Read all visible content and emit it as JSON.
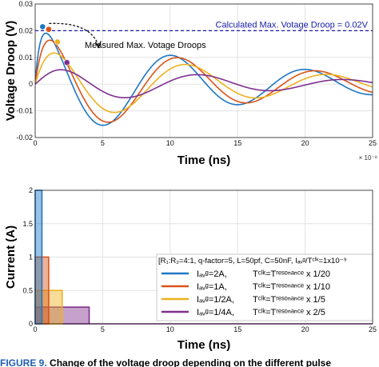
{
  "chart_data": [
    {
      "type": "line",
      "xlabel": "Time (ns)",
      "ylabel": "Voltage Droop (V)",
      "x_exponent_label": "× 10⁻⁸",
      "xlim": [
        0,
        25
      ],
      "ylim": [
        -0.02,
        0.03
      ],
      "xticks": [
        "0",
        "5",
        "10",
        "15",
        "20",
        "25"
      ],
      "yticks": [
        "-0.02",
        "-0.01",
        "0",
        "0.01",
        "0.02",
        "0.03"
      ],
      "grid": true,
      "series": [
        {
          "color": "#1f77c4",
          "peak": 0.0215,
          "period": 9.95,
          "delay": 0.0
        },
        {
          "color": "#d9541a",
          "peak": 0.0205,
          "period": 10.2,
          "delay": 0.45
        },
        {
          "color": "#edb120",
          "peak": 0.0158,
          "period": 10.45,
          "delay": 1.0
        },
        {
          "color": "#7e2f8e",
          "peak": 0.0081,
          "period": 10.75,
          "delay": 2.0
        }
      ],
      "peak_markers": [
        {
          "x": 0.55,
          "y": 0.0215,
          "color": "#1f77c4"
        },
        {
          "x": 1.0,
          "y": 0.0205,
          "color": "#d9541a"
        },
        {
          "x": 1.65,
          "y": 0.0158,
          "color": "#edb120"
        },
        {
          "x": 2.35,
          "y": 0.0081,
          "color": "#7e2f8e"
        }
      ],
      "reference_line": {
        "y": 0.02,
        "color": "#1a1aa6",
        "label": "Calculated Max. Votage Droop = 0.02V"
      },
      "annotation": "Measured Max. Votage Droops"
    },
    {
      "type": "bar",
      "xlabel": "Time (ns)",
      "ylabel": "Current (A)",
      "x_exponent_label": "",
      "xlim": [
        0,
        25
      ],
      "ylim": [
        0,
        2
      ],
      "xticks": [
        "0",
        "5",
        "10",
        "15",
        "20",
        "25"
      ],
      "yticks": [
        "0",
        "0.5",
        "1",
        "1.5",
        "2"
      ],
      "grid": true,
      "pulses": [
        {
          "amplitude": 2.0,
          "width": 0.5,
          "color": "#1f77c4"
        },
        {
          "amplitude": 1.0,
          "width": 1.0,
          "color": "#d9541a"
        },
        {
          "amplitude": 0.5,
          "width": 2.0,
          "color": "#edb120"
        },
        {
          "amplitude": 0.25,
          "width": 4.0,
          "color": "#7e2f8e"
        }
      ],
      "legend": {
        "position": "right",
        "header": "[R₁:R₂=4:1, q-factor=5, L=50pf, C=50nF, Iₐᵥᵍ/Tᶜˡᵏ=1x10⁻⁹",
        "entries": [
          {
            "color": "#1f77c4",
            "current": "Iₐᵥᵍ=2A,",
            "ratio": "Tᶜˡᵏ=Tʳᵉˢᵒⁿᵃⁿᶜᵉ x 1/20"
          },
          {
            "color": "#d9541a",
            "current": "Iₐᵥᵍ=1A,",
            "ratio": "Tᶜˡᵏ=Tʳᵉˢᵒⁿᵃⁿᶜᵉ x 1/10"
          },
          {
            "color": "#edb120",
            "current": "Iₐᵥᵍ=1/2A,",
            "ratio": "Tᶜˡᵏ=Tʳᵉˢᵒⁿᵃⁿᶜᵉ x 1/5"
          },
          {
            "color": "#7e2f8e",
            "current": "Iₐᵥᵍ=1/4A,",
            "ratio": "Tᶜˡᵏ=Tʳᵉˢᵒⁿᵃⁿᶜᵉ x 2/5"
          }
        ]
      }
    }
  ],
  "caption": {
    "figure_label": "FIGURE 9.",
    "text": "Change of the voltage droop depending on the different pulse"
  }
}
